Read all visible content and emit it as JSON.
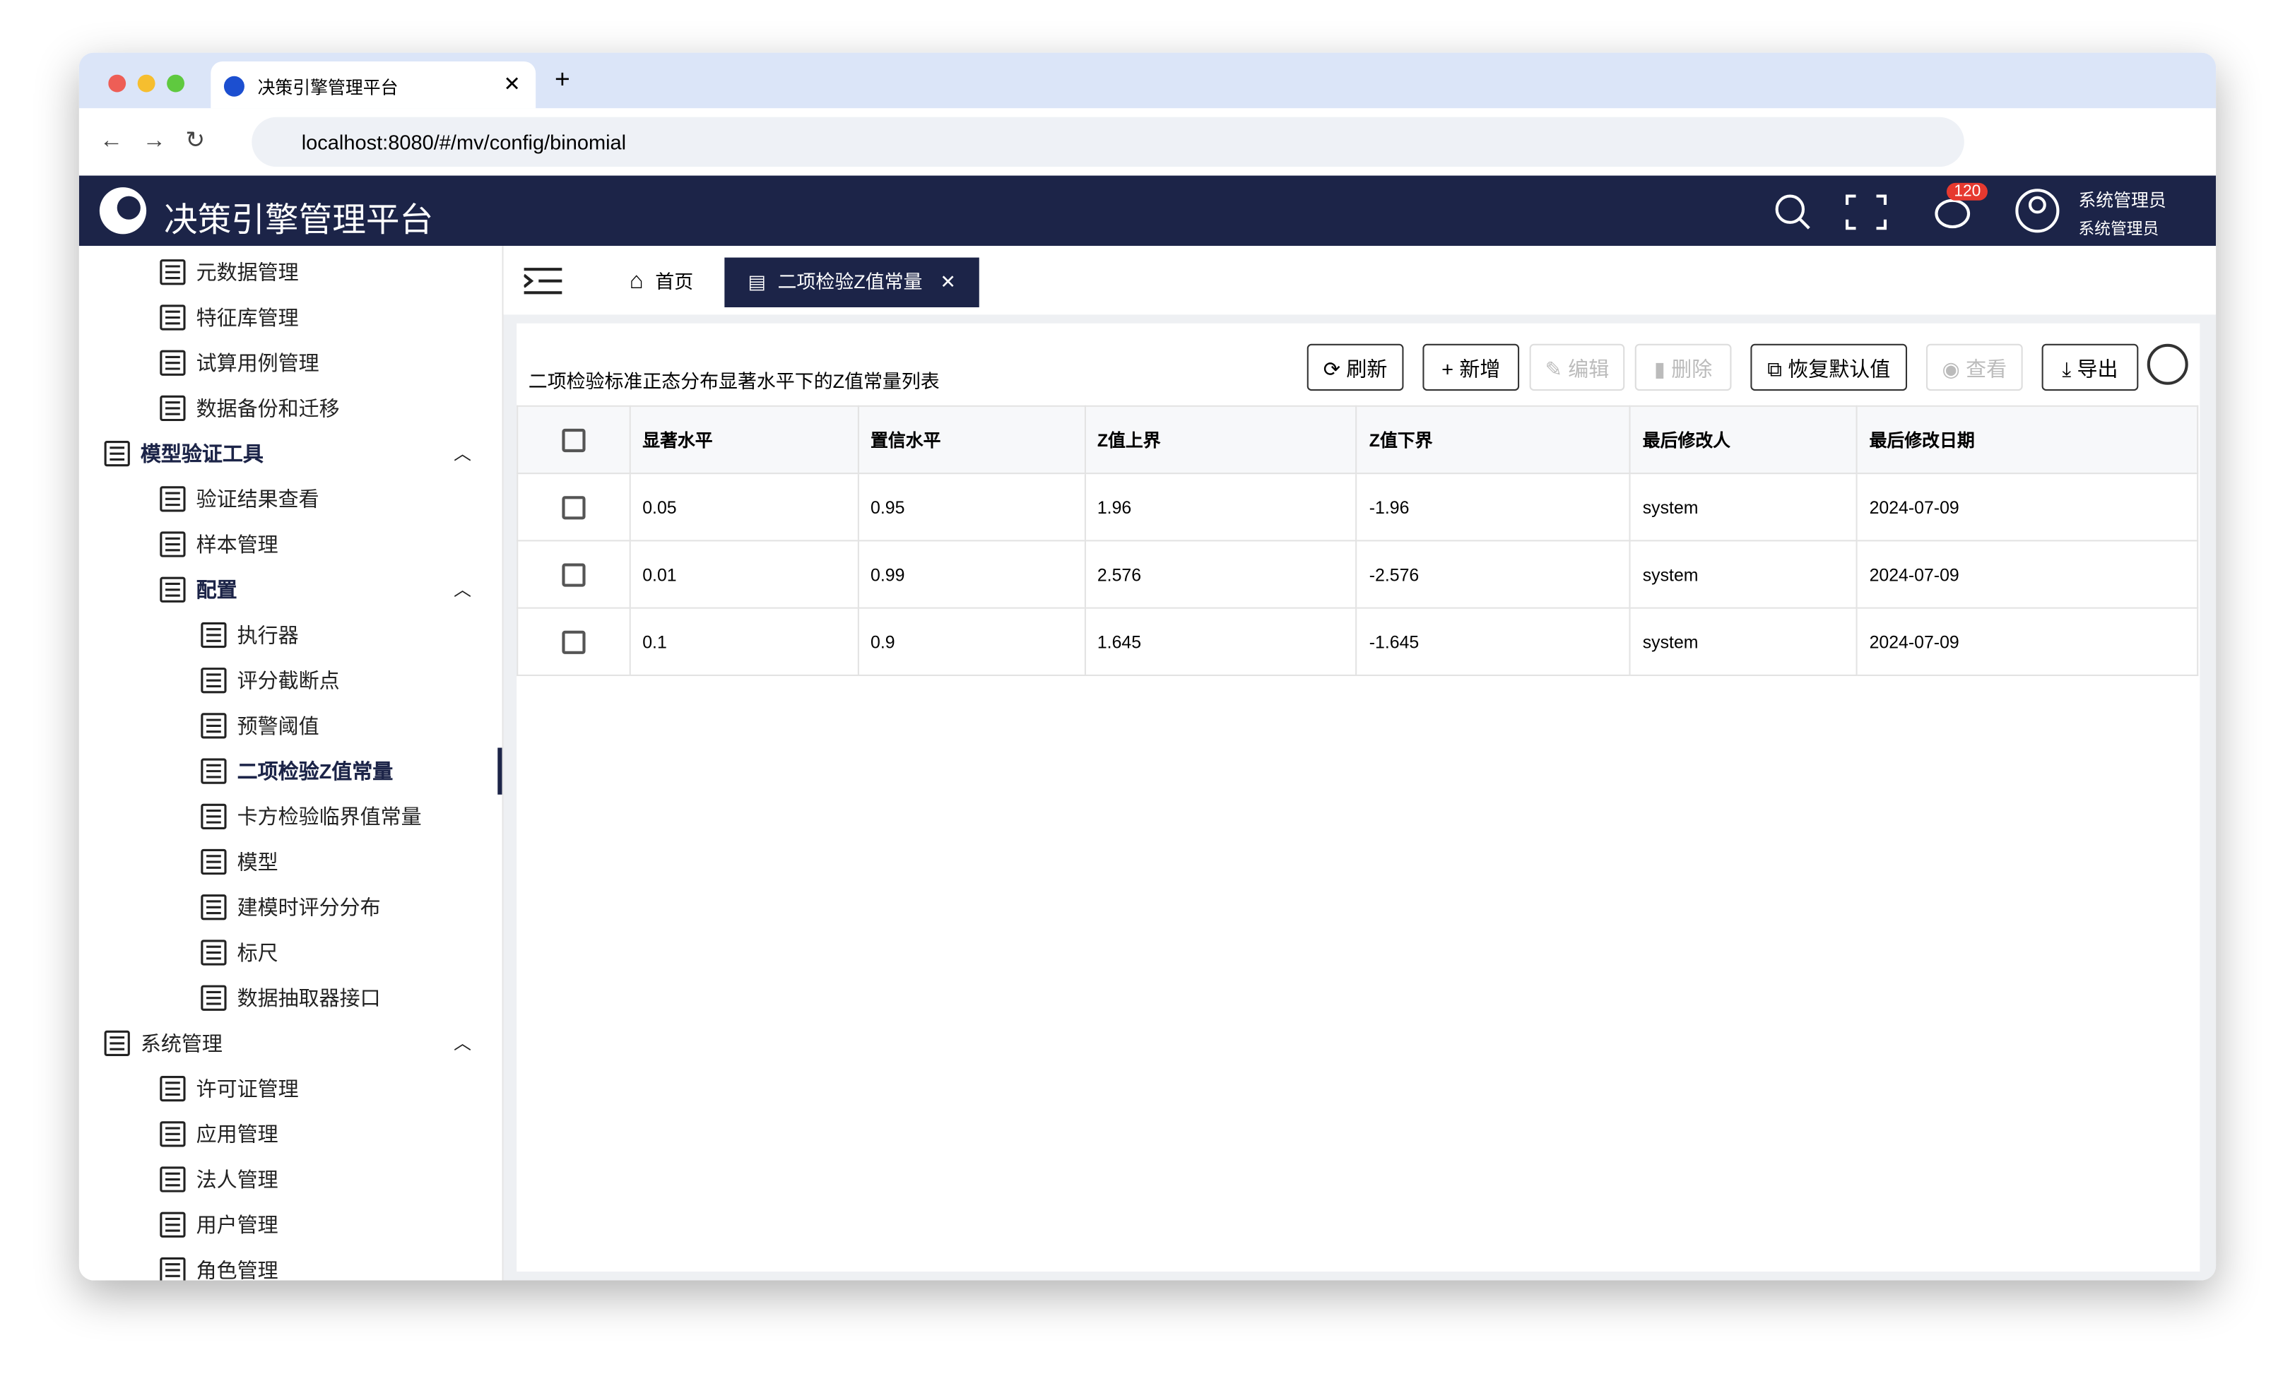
{
  "browser": {
    "tab_title": "决策引擎管理平台",
    "url": "localhost:8080/#/mv/config/binomial"
  },
  "header": {
    "title": "决策引擎管理平台",
    "badge": "120",
    "user_name": "系统管理员",
    "user_role": "系统管理员"
  },
  "sidebar": {
    "items": [
      {
        "label": "元数据管理",
        "level": 2
      },
      {
        "label": "特征库管理",
        "level": 2
      },
      {
        "label": "试算用例管理",
        "level": 2
      },
      {
        "label": "数据备份和迁移",
        "level": 2
      },
      {
        "label": "模型验证工具",
        "level": 1,
        "open": true
      },
      {
        "label": "验证结果查看",
        "level": 2
      },
      {
        "label": "样本管理",
        "level": 2
      },
      {
        "label": "配置",
        "level": 2,
        "open": true
      },
      {
        "label": "执行器",
        "level": 3
      },
      {
        "label": "评分截断点",
        "level": 3
      },
      {
        "label": "预警阈值",
        "level": 3
      },
      {
        "label": "二项检验Z值常量",
        "level": 3,
        "active": true
      },
      {
        "label": "卡方检验临界值常量",
        "level": 3
      },
      {
        "label": "模型",
        "level": 3
      },
      {
        "label": "建模时评分分布",
        "level": 3
      },
      {
        "label": "标尺",
        "level": 3
      },
      {
        "label": "数据抽取器接口",
        "level": 3
      },
      {
        "label": "系统管理",
        "level": 1,
        "open": true
      },
      {
        "label": "许可证管理",
        "level": 2
      },
      {
        "label": "应用管理",
        "level": 2
      },
      {
        "label": "法人管理",
        "level": 2
      },
      {
        "label": "用户管理",
        "level": 2
      },
      {
        "label": "角色管理",
        "level": 2
      }
    ]
  },
  "tabs": [
    "首页",
    "二项检验Z值常量"
  ],
  "content": {
    "title": "二项检验标准正态分布显著水平下的Z值常量列表",
    "buttons": [
      {
        "label": "刷新",
        "enabled": true
      },
      {
        "label": "新增",
        "enabled": true
      },
      {
        "label": "编辑",
        "enabled": false
      },
      {
        "label": "删除",
        "enabled": false
      },
      {
        "label": "恢复默认值",
        "enabled": true
      },
      {
        "label": "查看",
        "enabled": false
      },
      {
        "label": "导出",
        "enabled": true
      }
    ],
    "table": {
      "columns": [
        "显著水平",
        "置信水平",
        "Z值上界",
        "Z值下界",
        "最后修改人",
        "最后修改日期"
      ],
      "rows": [
        [
          "0.05",
          "0.95",
          "1.96",
          "-1.96",
          "system",
          "2024-07-09"
        ],
        [
          "0.01",
          "0.99",
          "2.576",
          "-2.576",
          "system",
          "2024-07-09"
        ],
        [
          "0.1",
          "0.9",
          "1.645",
          "-1.645",
          "system",
          "2024-07-09"
        ]
      ]
    }
  }
}
